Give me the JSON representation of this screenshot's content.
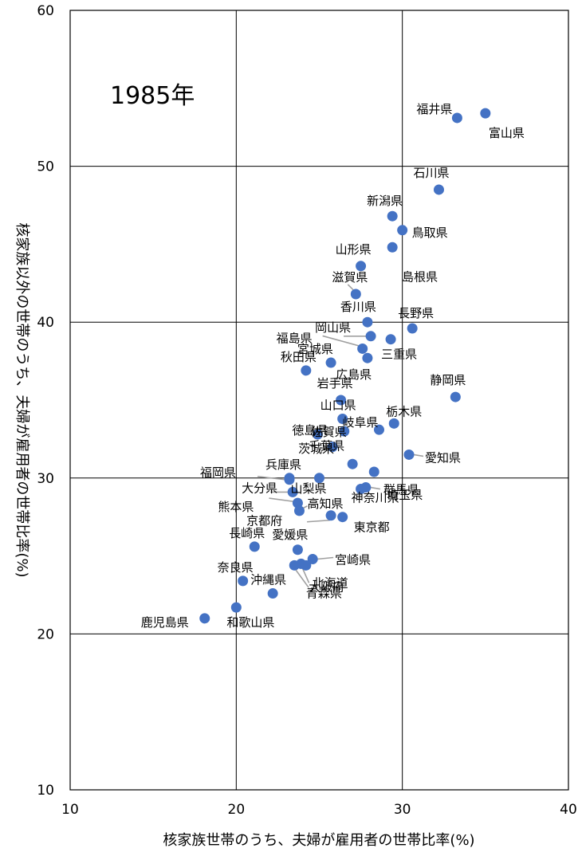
{
  "chart_data": {
    "type": "scatter",
    "annotation": "1985年",
    "xlabel": "核家族世帯のうち、夫婦が雇用者の世帯比率(%)",
    "ylabel": "核家族以外の世帯のうち、夫婦が雇用者の世帯比率(%)",
    "xlim": [
      10,
      40
    ],
    "ylim": [
      10,
      60
    ],
    "xticks": [
      "10",
      "20",
      "30",
      "40"
    ],
    "yticks": [
      "10",
      "20",
      "30",
      "40",
      "50",
      "60"
    ],
    "grid": true,
    "series_color": "#4472C4",
    "points": [
      {
        "label": "福井県",
        "x": 33.3,
        "y": 53.1
      },
      {
        "label": "富山県",
        "x": 35.0,
        "y": 53.4
      },
      {
        "label": "石川県",
        "x": 32.2,
        "y": 48.5
      },
      {
        "label": "新潟県",
        "x": 29.4,
        "y": 46.8
      },
      {
        "label": "鳥取県",
        "x": 30.0,
        "y": 45.9
      },
      {
        "label": "山形県",
        "x": 27.5,
        "y": 43.6
      },
      {
        "label": "島根県",
        "x": 29.4,
        "y": 44.8
      },
      {
        "label": "滋賀県",
        "x": 27.2,
        "y": 41.8
      },
      {
        "label": "香川県",
        "x": 27.9,
        "y": 40.0
      },
      {
        "label": "長野県",
        "x": 30.6,
        "y": 39.6
      },
      {
        "label": "岡山県",
        "x": 28.1,
        "y": 39.1
      },
      {
        "label": "福島県",
        "x": 27.6,
        "y": 38.3
      },
      {
        "label": "宮城県",
        "x": 27.9,
        "y": 37.7
      },
      {
        "label": "三重県",
        "x": 29.3,
        "y": 38.9
      },
      {
        "label": "秋田県",
        "x": 24.2,
        "y": 36.9
      },
      {
        "label": "広島県",
        "x": 25.7,
        "y": 37.4
      },
      {
        "label": "静岡県",
        "x": 33.2,
        "y": 35.2
      },
      {
        "label": "岩手県",
        "x": 26.3,
        "y": 35.0
      },
      {
        "label": "山口県",
        "x": 26.4,
        "y": 33.8
      },
      {
        "label": "栃木県",
        "x": 29.5,
        "y": 33.5
      },
      {
        "label": "岐阜県",
        "x": 28.6,
        "y": 33.1
      },
      {
        "label": "徳島県",
        "x": 24.9,
        "y": 32.8
      },
      {
        "label": "佐賀県",
        "x": 26.5,
        "y": 33.0
      },
      {
        "label": "千葉県",
        "x": 25.8,
        "y": 32.0
      },
      {
        "label": "愛知県",
        "x": 30.4,
        "y": 31.5
      },
      {
        "label": "兵庫県",
        "x": 23.2,
        "y": 30.0
      },
      {
        "label": "茨城県",
        "x": 27.0,
        "y": 30.9
      },
      {
        "label": "福岡県",
        "x": 23.2,
        "y": 29.9
      },
      {
        "label": "大分県",
        "x": 23.4,
        "y": 29.1
      },
      {
        "label": "埼玉県",
        "x": 28.3,
        "y": 30.4
      },
      {
        "label": "山梨県",
        "x": 25.0,
        "y": 30.0
      },
      {
        "label": "熊本県",
        "x": 23.7,
        "y": 28.4
      },
      {
        "label": "群馬県",
        "x": 27.8,
        "y": 29.4
      },
      {
        "label": "高知県",
        "x": 23.8,
        "y": 27.9
      },
      {
        "label": "神奈川県",
        "x": 27.5,
        "y": 29.3
      },
      {
        "label": "京都府",
        "x": 25.7,
        "y": 27.6
      },
      {
        "label": "東京都",
        "x": 26.4,
        "y": 27.5
      },
      {
        "label": "長崎県",
        "x": 21.1,
        "y": 25.6
      },
      {
        "label": "愛媛県",
        "x": 23.7,
        "y": 25.4
      },
      {
        "label": "宮崎県",
        "x": 24.6,
        "y": 24.8
      },
      {
        "label": "奈良県",
        "x": 20.4,
        "y": 23.4
      },
      {
        "label": "北海道",
        "x": 23.9,
        "y": 24.5
      },
      {
        "label": "沖縄県",
        "x": 22.2,
        "y": 22.6
      },
      {
        "label": "大阪府",
        "x": 23.5,
        "y": 24.4
      },
      {
        "label": "青森県",
        "x": 24.2,
        "y": 24.4
      },
      {
        "label": "和歌山県",
        "x": 20.0,
        "y": 21.7
      },
      {
        "label": "鹿児島県",
        "x": 18.1,
        "y": 21.0
      }
    ]
  }
}
